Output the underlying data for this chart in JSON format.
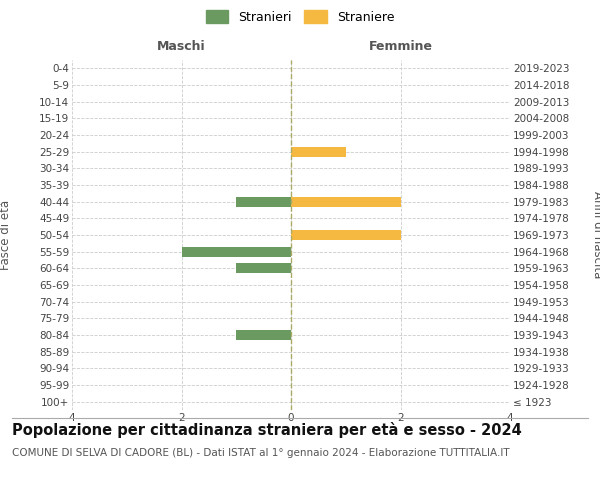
{
  "age_groups": [
    "100+",
    "95-99",
    "90-94",
    "85-89",
    "80-84",
    "75-79",
    "70-74",
    "65-69",
    "60-64",
    "55-59",
    "50-54",
    "45-49",
    "40-44",
    "35-39",
    "30-34",
    "25-29",
    "20-24",
    "15-19",
    "10-14",
    "5-9",
    "0-4"
  ],
  "birth_years": [
    "≤ 1923",
    "1924-1928",
    "1929-1933",
    "1934-1938",
    "1939-1943",
    "1944-1948",
    "1949-1953",
    "1954-1958",
    "1959-1963",
    "1964-1968",
    "1969-1973",
    "1974-1978",
    "1979-1983",
    "1984-1988",
    "1989-1993",
    "1994-1998",
    "1999-2003",
    "2004-2008",
    "2009-2013",
    "2014-2018",
    "2019-2023"
  ],
  "maschi": [
    0,
    0,
    0,
    0,
    1,
    0,
    0,
    0,
    1,
    2,
    0,
    0,
    1,
    0,
    0,
    0,
    0,
    0,
    0,
    0,
    0
  ],
  "femmine": [
    0,
    0,
    0,
    0,
    0,
    0,
    0,
    0,
    0,
    0,
    2,
    0,
    2,
    0,
    0,
    1,
    0,
    0,
    0,
    0,
    0
  ],
  "color_maschi": "#6a9a5f",
  "color_femmine": "#f5b942",
  "xlim": 4,
  "title": "Popolazione per cittadinanza straniera per età e sesso - 2024",
  "subtitle": "COMUNE DI SELVA DI CADORE (BL) - Dati ISTAT al 1° gennaio 2024 - Elaborazione TUTTITALIA.IT",
  "ylabel_left": "Fasce di età",
  "ylabel_right": "Anni di nascita",
  "xlabel_maschi": "Maschi",
  "xlabel_femmine": "Femmine",
  "legend_maschi": "Stranieri",
  "legend_femmine": "Straniere",
  "bg_color": "#ffffff",
  "grid_color": "#cccccc",
  "title_fontsize": 10.5,
  "subtitle_fontsize": 7.5,
  "tick_fontsize": 7.5,
  "label_fontsize": 8.5,
  "header_fontsize": 9
}
